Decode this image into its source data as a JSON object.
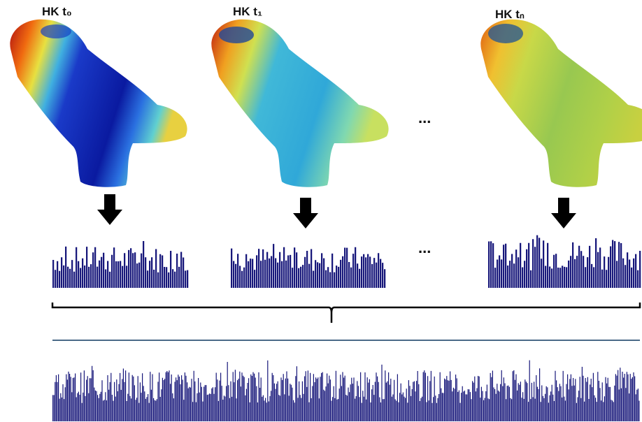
{
  "labels": [
    "HK t₀",
    "HK t₁",
    "HK tₙ"
  ],
  "ellipses": [
    "...",
    "..."
  ]
}
